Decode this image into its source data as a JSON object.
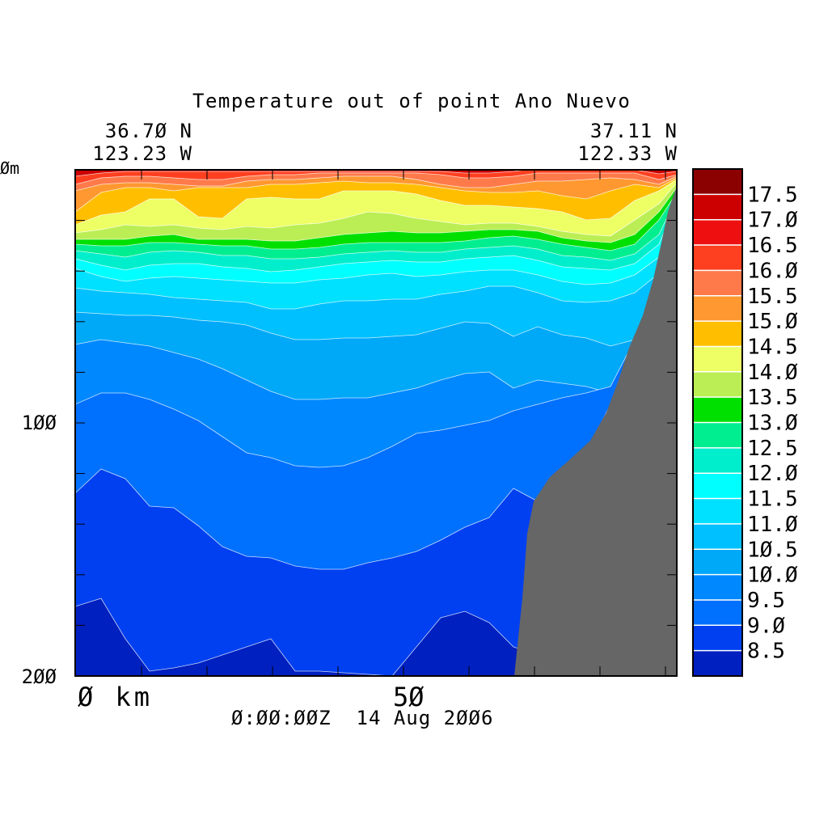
{
  "chart_data": {
    "type": "heatmap",
    "title": "Temperature out of point Ano Nuevo",
    "start_point": {
      "lat": "36.70 N",
      "lon": "123.23 W"
    },
    "end_point": {
      "lat": "37.11 N",
      "lon": "122.33 W"
    },
    "y_axis": {
      "label": "m",
      "range": [
        0,
        200
      ],
      "ticks": [
        "0m",
        "100",
        "200"
      ],
      "inverted": true
    },
    "x_axis": {
      "label": "km",
      "ticks": [
        "0 km",
        "50"
      ]
    },
    "timestamp": "0:00:00Z  14 Aug 2006",
    "colorbar": {
      "levels": [
        {
          "value": "17.5",
          "color": "#8b0000"
        },
        {
          "value": "17.0",
          "color": "#cc0000"
        },
        {
          "value": "16.5",
          "color": "#ee1010"
        },
        {
          "value": "16.0",
          "color": "#ff4020"
        },
        {
          "value": "15.5",
          "color": "#ff7a4a"
        },
        {
          "value": "15.0",
          "color": "#ff9830"
        },
        {
          "value": "14.5",
          "color": "#ffbf00"
        },
        {
          "value": "14.0",
          "color": "#eeff66"
        },
        {
          "value": "13.5",
          "color": "#bbee55"
        },
        {
          "value": "13.0",
          "color": "#00e000"
        },
        {
          "value": "12.5",
          "color": "#00ee90"
        },
        {
          "value": "12.0",
          "color": "#00eecc"
        },
        {
          "value": "11.5",
          "color": "#00ffff"
        },
        {
          "value": "11.0",
          "color": "#00e0ff"
        },
        {
          "value": "10.5",
          "color": "#00c0ff"
        },
        {
          "value": "10.0",
          "color": "#00a8f8"
        },
        {
          "value": "9.5",
          "color": "#0088ff"
        },
        {
          "value": "9.0",
          "color": "#0070ff"
        },
        {
          "value": "8.5",
          "color": "#0040f0"
        },
        {
          "value": "",
          "color": "#0020c0"
        }
      ]
    },
    "bathymetry_color": "#666666"
  }
}
